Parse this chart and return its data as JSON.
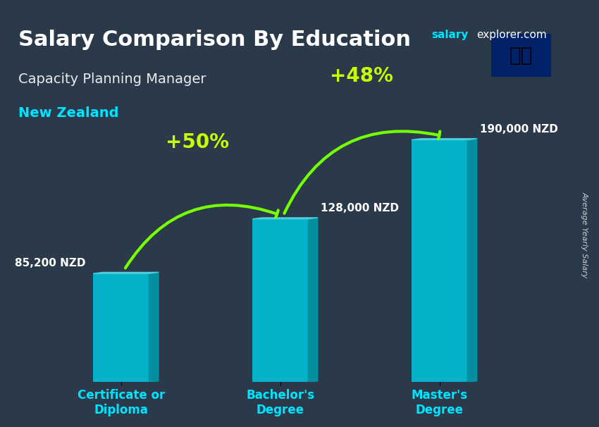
{
  "title": "Salary Comparison By Education",
  "subtitle": "Capacity Planning Manager",
  "country": "New Zealand",
  "site_name": "salary",
  "site_domain": "explorer.com",
  "ylabel": "Average Yearly Salary",
  "categories": [
    "Certificate or\nDiploma",
    "Bachelor's\nDegree",
    "Master's\nDegree"
  ],
  "values": [
    85200,
    128000,
    190000
  ],
  "value_labels": [
    "85,200 NZD",
    "128,000 NZD",
    "190,000 NZD"
  ],
  "pct_labels": [
    "+50%",
    "+48%"
  ],
  "bar_color_face": "#00bcd4",
  "bar_color_side": "#0097a7",
  "bar_color_top": "#4dd0e1",
  "arrow_color": "#76ff03",
  "pct_color": "#c6ff00",
  "title_color": "#ffffff",
  "subtitle_color": "#ffffff",
  "country_color": "#00e5ff",
  "label_color": "#ffffff",
  "xlabel_color": "#00e5ff",
  "bg_color": "#1a237e",
  "salary_label_color": "#ffffff",
  "ylim": [
    0,
    220000
  ],
  "bar_width": 0.35,
  "x_positions": [
    0.5,
    1.5,
    2.5
  ]
}
